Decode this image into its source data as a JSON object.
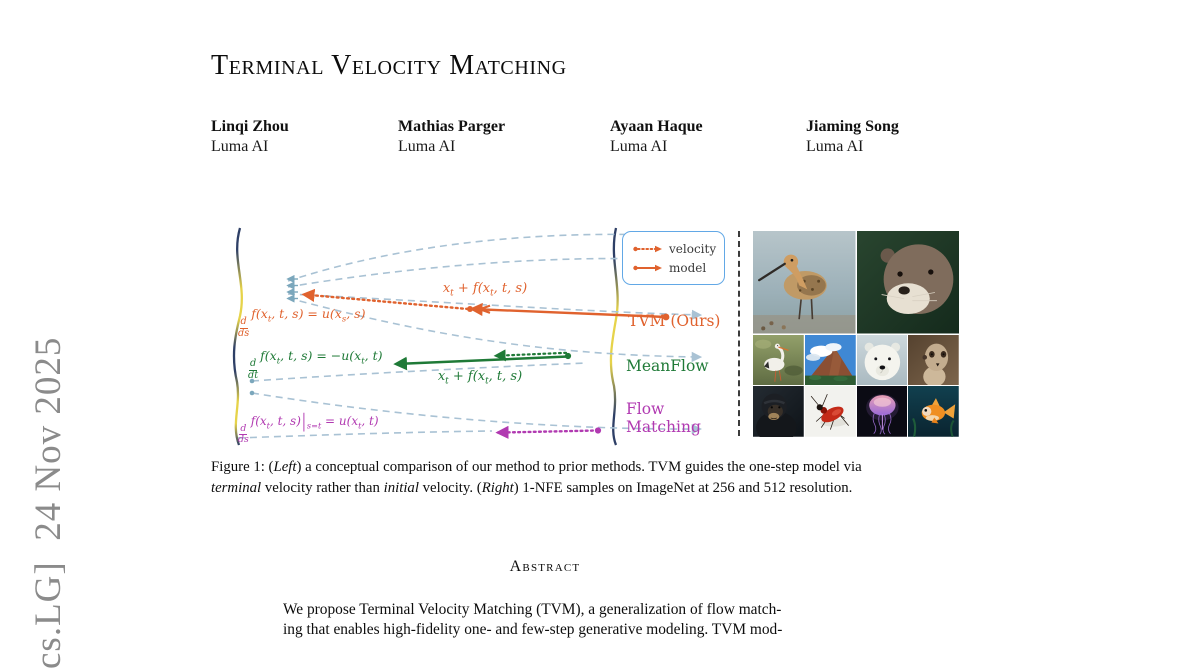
{
  "arxiv_stamp": "cs.LG]  24 Nov 2025",
  "title": "Terminal Velocity Matching",
  "authors": [
    {
      "name": "Linqi Zhou",
      "affiliation": "Luma AI"
    },
    {
      "name": "Mathias Parger",
      "affiliation": "Luma AI"
    },
    {
      "name": "Ayaan Haque",
      "affiliation": "Luma AI"
    },
    {
      "name": "Jiaming Song",
      "affiliation": "Luma AI"
    }
  ],
  "figure": {
    "legend": {
      "velocity_label": "velocity",
      "model_label": "model"
    },
    "methods": {
      "tvm": {
        "label": "TVM (Ours)",
        "color": "#e0622e",
        "formula": "frac{d}{ds}f(x_t, t, s) = u(x_s, s)",
        "annotation": "x_t + f(x_t, t, s)"
      },
      "meanflow": {
        "label": "MeanFlow",
        "color": "#1f7a37",
        "formula": "frac{d}{dt}f(x_t, t, s) = −u(x_t, t)",
        "annotation": "x_t + f(x_t, t, s)"
      },
      "flow_matching": {
        "label": "Flow Matching",
        "color": "#b13ab1",
        "formula": "frac{d}{ds}f(x_t, t, s)|_{s=t} = u(x_t, t)"
      }
    },
    "accent_colors": {
      "trajectory_dash": "#a9c2d4",
      "legend_border": "#62a8e6",
      "curve_navy": "#2e3f66",
      "curve_yellow": "#e6d34a"
    },
    "images": [
      "shorebird",
      "otter",
      "white-stork",
      "mountain-landscape",
      "polar-bear",
      "meerkat",
      "chimpanzee",
      "red-beetle",
      "jellyfish",
      "goldfish"
    ],
    "caption": {
      "lines": [
        {
          "segments": [
            {
              "t": "Figure 1: ("
            },
            {
              "t": "Left",
              "i": 1
            },
            {
              "t": ") a conceptual comparison of our method to prior methods. TVM guides the one-step model via"
            }
          ]
        },
        {
          "segments": [
            {
              "t": "terminal",
              "i": 1
            },
            {
              "t": " velocity rather than "
            },
            {
              "t": "initial",
              "i": 1
            },
            {
              "t": " velocity. ("
            },
            {
              "t": "Right",
              "i": 1
            },
            {
              "t": ") 1-NFE samples on ImageNet at 256 and 512 resolution."
            }
          ]
        }
      ]
    }
  },
  "abstract": {
    "heading": "Abstract",
    "lines": [
      "We propose Terminal Velocity Matching (TVM), a generalization of flow match-",
      "ing that enables high-fidelity one- and few-step generative modeling. TVM mod-"
    ]
  }
}
